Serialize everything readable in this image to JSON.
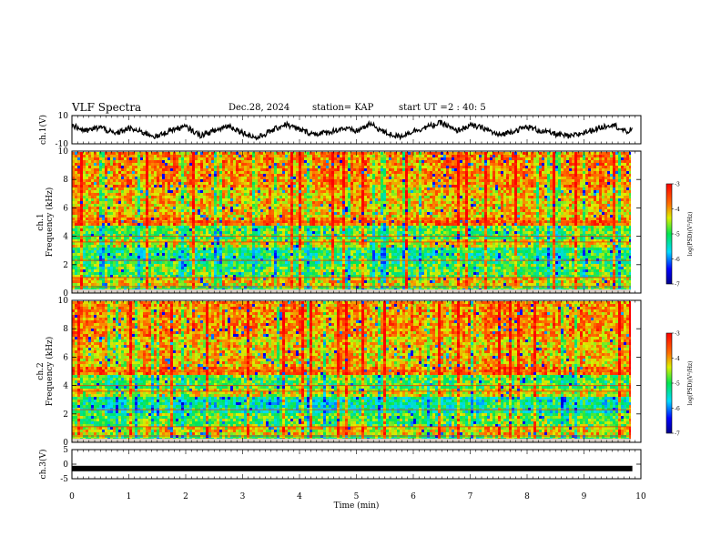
{
  "header": {
    "title": "VLF Spectra",
    "date": "Dec.28, 2024",
    "station": "station= KAP",
    "start_label": "start  UT  =",
    "start_time": "2 : 40: 5"
  },
  "colors": {
    "waveform": "#000000",
    "axes": "#000000",
    "background": "#ffffff"
  },
  "chart_data": [
    {
      "type": "line",
      "name": "ch1-waveform",
      "ylabel": "ch.1(V)",
      "ylim": [
        -10,
        10
      ],
      "yticks": [
        "10",
        "-10"
      ],
      "x": [
        0,
        0.25,
        0.5,
        0.75,
        1,
        1.25,
        1.5,
        1.75,
        2,
        2.25,
        2.5,
        2.75,
        3,
        3.25,
        3.5,
        3.75,
        4,
        4.25,
        4.5,
        4.75,
        5,
        5.25,
        5.5,
        5.75,
        6,
        6.25,
        6.5,
        6.75,
        7,
        7.25,
        7.5,
        7.75,
        8,
        8.25,
        8.5,
        8.75,
        9,
        9.25,
        9.5,
        9.75,
        9.85
      ],
      "y": [
        3,
        -1,
        2,
        -3,
        1,
        -2,
        -5,
        0,
        2,
        -4,
        -1,
        3,
        -2,
        -6,
        -1,
        4,
        0,
        -3,
        -2,
        1,
        -1,
        4,
        -2,
        -5,
        -1,
        2,
        5,
        -1,
        3,
        1,
        -4,
        -1,
        2,
        -1,
        -3,
        -5,
        -2,
        1,
        4,
        -2,
        1
      ]
    },
    {
      "type": "heatmap",
      "name": "ch1-spectrogram",
      "ylabel": "ch.1",
      "ylabel2": "Frequency  (kHz)",
      "ylim": [
        0,
        10
      ],
      "yticks": [
        "0",
        "2",
        "4",
        "6",
        "8",
        "10"
      ],
      "colorbar": {
        "range": [
          -7,
          -3
        ],
        "ticks": [
          "-3",
          "-4",
          "-5",
          "-6",
          "-7"
        ],
        "label": "log(PSD)(V²/Hz)"
      }
    },
    {
      "type": "heatmap",
      "name": "ch2-spectrogram",
      "ylabel": "ch.2",
      "ylabel2": "Frequency  (kHz)",
      "ylim": [
        0,
        10
      ],
      "yticks": [
        "0",
        "2",
        "4",
        "6",
        "8",
        "10"
      ],
      "colorbar": {
        "range": [
          -7,
          -3
        ],
        "ticks": [
          "-3",
          "-4",
          "-5",
          "-6",
          "-7"
        ],
        "label": "log(PSD)(V²/Hz)"
      }
    },
    {
      "type": "line",
      "name": "ch3-waveform",
      "ylabel": "ch.3(V)",
      "ylim": [
        -5,
        5
      ],
      "yticks": [
        "5",
        "0",
        "-5"
      ],
      "x": [
        0,
        9.85
      ],
      "y": [
        -1.5,
        -1.5
      ]
    }
  ],
  "xaxis": {
    "label": "Time  (min)",
    "range": [
      0,
      10
    ],
    "ticks": [
      "0",
      "1",
      "2",
      "3",
      "4",
      "5",
      "6",
      "7",
      "8",
      "9",
      "10"
    ]
  }
}
